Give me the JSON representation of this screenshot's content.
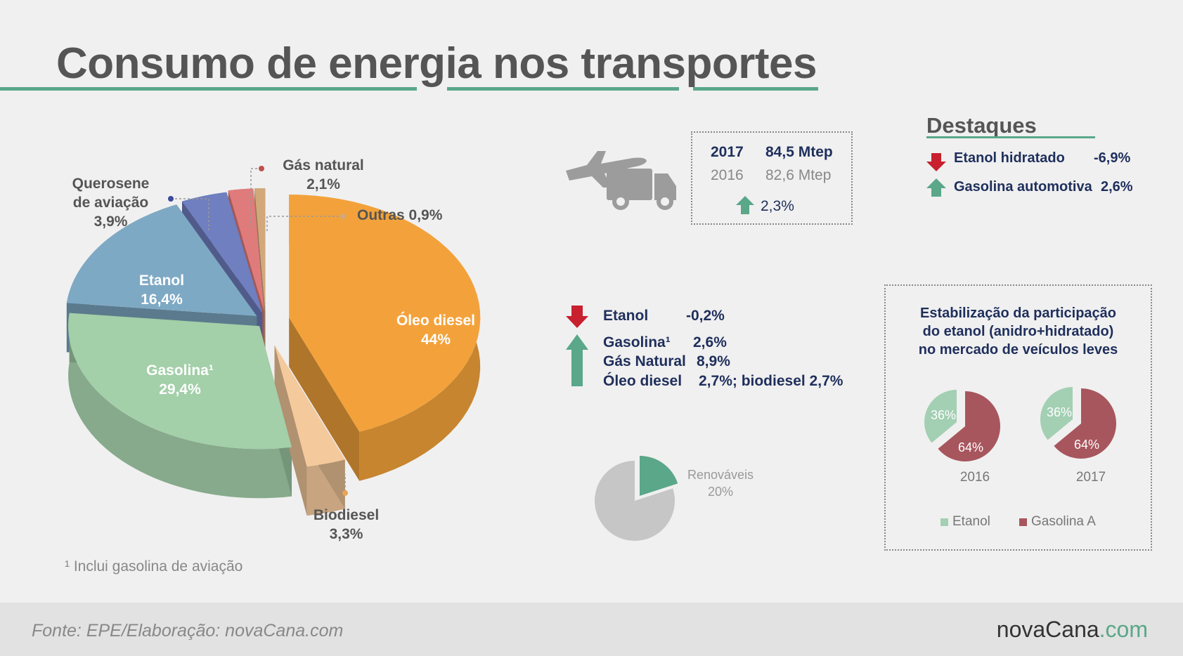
{
  "title": "Consumo de energia nos transportes",
  "colors": {
    "accent": "#5aa78a",
    "oleo_diesel": "#f3a23b",
    "biodiesel": "#f4c99c",
    "gasolina": "#a3cfa9",
    "etanol": "#7ea9c4",
    "querosene": "#6f7fc0",
    "gas_natural": "#e07b7b",
    "outras": "#d2a87b",
    "down_arrow": "#c8202f",
    "up_arrow": "#5aa78a",
    "ethanol_share": "#a3cfb3",
    "gasoline_share": "#a8565e",
    "renewables": "#5aa78a",
    "non_renewables": "#c6c6c6"
  },
  "chart_data": [
    {
      "type": "pie",
      "slices": [
        {
          "label": "Óleo diesel",
          "value": 44,
          "value_label": "44%"
        },
        {
          "label": "Biodiesel",
          "value": 3.3,
          "value_label": "3,3%"
        },
        {
          "label": "Gasolina¹",
          "value": 29.4,
          "value_label": "29,4%"
        },
        {
          "label": "Etanol",
          "value": 16.4,
          "value_label": "16,4%"
        },
        {
          "label_line1": "Querosene",
          "label_line2": "de aviação",
          "value": 3.9,
          "value_label": "3,9%"
        },
        {
          "label": "Gás natural",
          "value": 2.1,
          "value_label": "2,1%"
        },
        {
          "label": "Outras 0,9%",
          "value": 0.9
        }
      ],
      "footnote": "¹ Inclui gasolina de aviação"
    },
    {
      "type": "pie",
      "slices": [
        {
          "label": "Renováveis",
          "value": 20,
          "value_label": "20%"
        },
        {
          "value": 80
        }
      ]
    },
    {
      "type": "pie",
      "title_line1": "Estabilização da participação",
      "title_line2": "do etanol (anidro+hidratado)",
      "title_line3": "no mercado de veículos leves",
      "categories": [
        "2016",
        "2017"
      ],
      "series": [
        {
          "name": "Etanol",
          "values": [
            36,
            36
          ],
          "value_labels": [
            "36%",
            "36%"
          ]
        },
        {
          "name": "Gasolina A",
          "values": [
            64,
            64
          ],
          "value_labels": [
            "64%",
            "64%"
          ]
        }
      ]
    }
  ],
  "total_box": {
    "row2017_year": "2017",
    "row2017_value": "84,5 Mtep",
    "row2016_year": "2016",
    "row2016_value": "82,6 Mtep",
    "change": "2,3%",
    "icons": [
      "airplane-icon",
      "truck-icon",
      "arrow-up-icon"
    ]
  },
  "destaques": {
    "heading": "Destaques",
    "items": [
      {
        "label": "Etanol hidratado",
        "value": "-6,9%",
        "icon": "arrow-down-icon"
      },
      {
        "label": "Gasolina automotiva",
        "value": "2,6%",
        "icon": "arrow-up-icon"
      }
    ]
  },
  "changes": {
    "etanol_label": "Etanol",
    "etanol_value": "-0,2%",
    "gasolina_label": "Gasolina¹",
    "gasolina_value": "2,6%",
    "gas_label": "Gás Natural",
    "gas_value": "8,9%",
    "oleo_label": "Óleo diesel",
    "oleo_value": "2,7%; biodiesel 2,7%"
  },
  "footer": {
    "source": "Fonte: EPE/Elaboração: novaCana.com",
    "logo_main": "novaCana",
    "logo_suffix": ".com"
  }
}
